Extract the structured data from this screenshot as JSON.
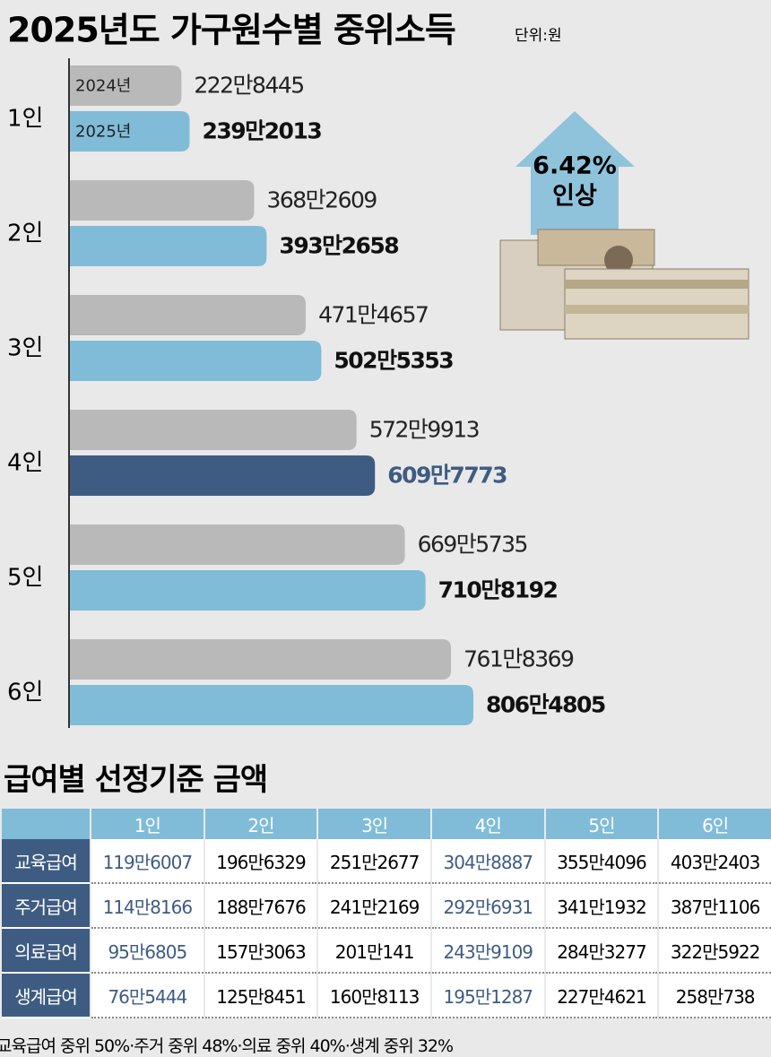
{
  "chart_data": {
    "type": "bar",
    "orientation": "horizontal",
    "title": "2025년도 가구원수별 중위소득",
    "unit": "단위:원",
    "categories": [
      "1인",
      "2인",
      "3인",
      "4인",
      "5인",
      "6인"
    ],
    "series": [
      {
        "name": "2024년",
        "color": "#b9b9b9",
        "label_color": "#222222",
        "values": [
          2228445,
          3682609,
          4714657,
          5729913,
          6695735,
          7618369
        ],
        "value_labels": [
          "222만8445",
          "368만2609",
          "471만4657",
          "572만9913",
          "669만5735",
          "761만8369"
        ]
      },
      {
        "name": "2025년",
        "color": "#80bcd8",
        "colors": [
          "#80bcd8",
          "#80bcd8",
          "#80bcd8",
          "#3e5c82",
          "#80bcd8",
          "#80bcd8"
        ],
        "label_colors": [
          "#111111",
          "#111111",
          "#111111",
          "#3e5c82",
          "#111111",
          "#111111"
        ],
        "values": [
          2392013,
          3932658,
          5025353,
          6097773,
          7108192,
          8064805
        ],
        "value_labels": [
          "239만2013",
          "393만2658",
          "502만5353",
          "609만7773",
          "710만8192",
          "806만4805"
        ]
      }
    ],
    "annotation": [
      "6.42%",
      "인상"
    ]
  },
  "table": {
    "title": "급여별 선정기준 금액",
    "columns": [
      "1인",
      "2인",
      "3인",
      "4인",
      "5인",
      "6인"
    ],
    "rows": [
      {
        "label": "교육급여",
        "values": [
          "119만6007",
          "196만6329",
          "251만2677",
          "304만8887",
          "355만4096",
          "403만2403"
        ]
      },
      {
        "label": "주거급여",
        "values": [
          "114만8166",
          "188만7676",
          "241만2169",
          "292만6931",
          "341만1932",
          "387만1106"
        ]
      },
      {
        "label": "의료급여",
        "values": [
          "95만6805",
          "157만3063",
          "201만141",
          "243만9109",
          "284만3277",
          "322만5922"
        ]
      },
      {
        "label": "생계급여",
        "values": [
          "76만5444",
          "125만8451",
          "160만8113",
          "195만1287",
          "227만4621",
          "258만738"
        ]
      }
    ],
    "footnote": "교육급여 중위 50%·주거 중위 48%·의료 중위 40%·생계 중위 32%"
  }
}
